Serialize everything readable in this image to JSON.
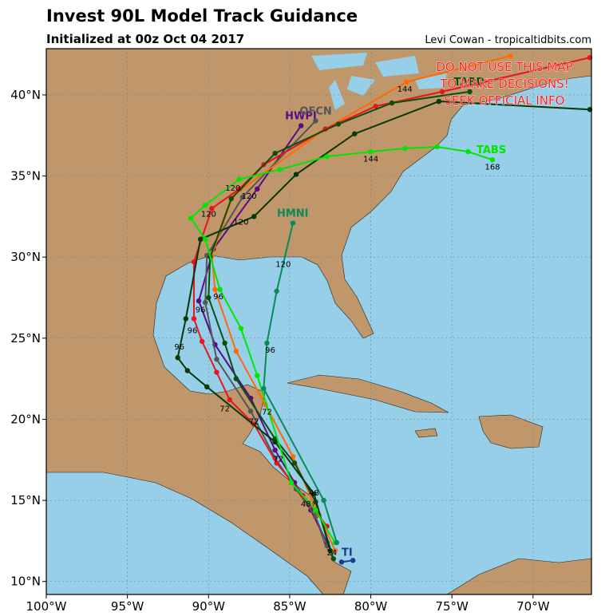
{
  "chart_data": {
    "type": "map-tracks",
    "title": "Invest 90L Model Track Guidance",
    "subtitle": "Initialized at 00z Oct 04 2017",
    "credit": "Levi Cowan - tropicaltidbits.com",
    "warning": [
      "DO NOT USE THIS MAP",
      "TO MAKE DECISIONS!",
      "SEEK OFFICIAL INFO"
    ],
    "xlim": [
      -100,
      -66.4
    ],
    "ylim": [
      9.2,
      42.85
    ],
    "xticks": [
      {
        "value": -100,
        "label": "100°W"
      },
      {
        "value": -95,
        "label": "95°W"
      },
      {
        "value": -90,
        "label": "90°W"
      },
      {
        "value": -85,
        "label": "85°W"
      },
      {
        "value": -80,
        "label": "80°W"
      },
      {
        "value": -75,
        "label": "75°W"
      },
      {
        "value": -70,
        "label": "70°W"
      }
    ],
    "yticks": [
      {
        "value": 10,
        "label": "10°N"
      },
      {
        "value": 15,
        "label": "15°N"
      },
      {
        "value": 20,
        "label": "20°N"
      },
      {
        "value": 25,
        "label": "25°N"
      },
      {
        "value": 30,
        "label": "30°N"
      },
      {
        "value": 35,
        "label": "35°N"
      },
      {
        "value": 40,
        "label": "40°N"
      }
    ],
    "grid": true,
    "series": [
      {
        "name": "HWPI",
        "color": "#5a0a87",
        "lon": [
          -82.7,
          -83.7,
          -84.7,
          -85.9,
          -87.4,
          -89.6,
          -90.6,
          -89.7,
          -87.0,
          -84.3
        ],
        "lat": [
          12.4,
          14.4,
          16.1,
          18.1,
          21.3,
          24.6,
          27.3,
          30.5,
          34.2,
          38.1
        ]
      },
      {
        "name": "OFCN",
        "color": "#555555",
        "lon": [
          -82.7,
          -83.4,
          -84.6,
          -85.9,
          -87.4,
          -89.5,
          -90.2,
          -90.1,
          -87.9,
          -83.4
        ],
        "lat": [
          12.2,
          14.0,
          15.7,
          17.6,
          20.5,
          23.7,
          27.2,
          30.1,
          33.7,
          38.4
        ]
      },
      {
        "color": "#ff6a00",
        "lon": [
          -82.2,
          -83.2,
          -84.8,
          -86.5,
          -88.3,
          -89.6,
          -89.8,
          -88.5,
          -82.8,
          -77.8,
          -71.4
        ],
        "lat": [
          11.9,
          14.1,
          17.7,
          20.9,
          24.2,
          28.0,
          30.1,
          33.8,
          37.9,
          40.8,
          42.4
        ]
      },
      {
        "color": "#e8141e",
        "lon": [
          -82.7,
          -84.2,
          -85.8,
          -87.2,
          -88.7,
          -89.5,
          -90.4,
          -90.9,
          -90.9,
          -89.8,
          -88.1,
          -86.6,
          -82.8,
          -79.7,
          -75.6,
          -66.5
        ],
        "lat": [
          13.4,
          15.3,
          17.3,
          19.7,
          21.2,
          22.9,
          24.8,
          26.2,
          29.7,
          33.0,
          34.2,
          35.7,
          37.9,
          39.3,
          40.2,
          42.3
        ]
      },
      {
        "name": "TABD",
        "color": "#0b4f0b",
        "lon": [
          -82.3,
          -83.4,
          -84.7,
          -85.9,
          -88.3,
          -89.0,
          -90.0,
          -89.9,
          -88.6,
          -85.9,
          -82.0,
          -78.7,
          -73.9
        ],
        "lat": [
          11.4,
          14.9,
          17.3,
          18.8,
          22.5,
          24.7,
          27.5,
          30.0,
          33.6,
          36.4,
          38.2,
          39.5,
          40.2
        ]
      },
      {
        "color": "#063806",
        "lon": [
          -82.5,
          -83.5,
          -85.9,
          -90.1,
          -91.3,
          -91.9,
          -91.4,
          -90.5,
          -87.2,
          -84.6,
          -81.0,
          -75.8,
          -66.5
        ],
        "lat": [
          11.9,
          15.4,
          18.6,
          22.0,
          23.0,
          23.8,
          26.2,
          31.1,
          32.5,
          35.1,
          37.6,
          39.6,
          39.1
        ]
      },
      {
        "name": "TABS",
        "color": "#00e600",
        "lon": [
          -82.2,
          -83.4,
          -84.9,
          -87.0,
          -88.0,
          -89.3,
          -90.2,
          -91.1,
          -90.2,
          -88.1,
          -85.6,
          -82.7,
          -80.0,
          -77.9,
          -75.9,
          -74.0,
          -72.5
        ],
        "lat": [
          12.4,
          14.4,
          16.1,
          22.7,
          25.6,
          28.0,
          31.1,
          32.4,
          33.2,
          34.8,
          35.4,
          36.2,
          36.5,
          36.7,
          36.8,
          36.5,
          36.0
        ]
      },
      {
        "name": "HMNI",
        "color": "#0a8a5a",
        "lon": [
          -82.1,
          -82.9,
          -86.6,
          -86.4,
          -85.8,
          -84.8
        ],
        "lat": [
          12.4,
          15.0,
          21.9,
          24.7,
          27.9,
          32.1
        ]
      },
      {
        "name": "TI",
        "color": "#1f3c8c",
        "lon": [
          -81.8,
          -81.1
        ],
        "lat": [
          11.2,
          11.3
        ]
      }
    ],
    "annotations": [
      {
        "text": "24",
        "lon": -82.4,
        "lat": 11.6
      },
      {
        "text": "48",
        "lon": -84.0,
        "lat": 14.6
      },
      {
        "text": "48",
        "lon": -83.5,
        "lat": 15.3
      },
      {
        "text": "72",
        "lon": -85.7,
        "lat": 17.4
      },
      {
        "text": "72",
        "lon": -87.2,
        "lat": 19.7
      },
      {
        "text": "72",
        "lon": -89.0,
        "lat": 20.5
      },
      {
        "text": "72",
        "lon": -86.4,
        "lat": 20.3
      },
      {
        "text": "96",
        "lon": -90.5,
        "lat": 26.6
      },
      {
        "text": "96",
        "lon": -91.0,
        "lat": 25.3
      },
      {
        "text": "96",
        "lon": -91.8,
        "lat": 24.3
      },
      {
        "text": "96",
        "lon": -89.4,
        "lat": 27.4
      },
      {
        "text": "96",
        "lon": -86.2,
        "lat": 24.1
      },
      {
        "text": "120",
        "lon": -88.5,
        "lat": 34.1
      },
      {
        "text": "120",
        "lon": -87.5,
        "lat": 33.6
      },
      {
        "text": "120",
        "lon": -90.0,
        "lat": 32.5
      },
      {
        "text": "120",
        "lon": -88.0,
        "lat": 32.0
      },
      {
        "text": "120",
        "lon": -85.4,
        "lat": 29.4
      },
      {
        "text": "144",
        "lon": -80.0,
        "lat": 35.9
      },
      {
        "text": "144",
        "lon": -77.9,
        "lat": 40.2
      },
      {
        "text": "168",
        "lon": -72.5,
        "lat": 35.4
      }
    ]
  }
}
